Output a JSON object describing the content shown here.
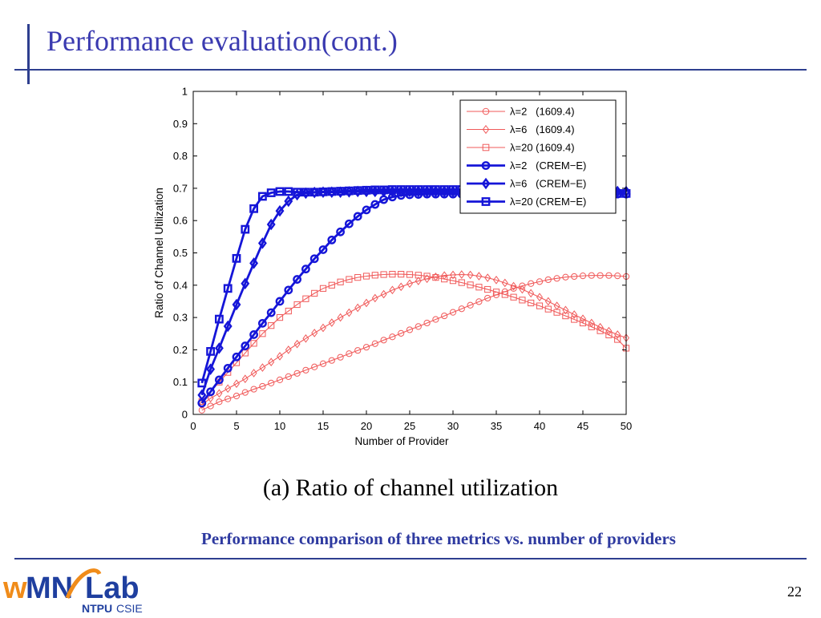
{
  "slide": {
    "title": "Performance evaluation(cont.)",
    "caption": "(a)  Ratio  of  channel  utilization",
    "subcaption": "Performance comparison of three metrics vs. number of providers",
    "page_number": "22",
    "logo": {
      "text": "wMNLab",
      "subtext_bold": "NTPU",
      "subtext": "CSIE"
    }
  },
  "colors": {
    "accent": "#2e3f8f",
    "title": "#3a3ab0",
    "caption": "#2e3aa0",
    "red": "#f05a5a",
    "blue": "#1515d8"
  },
  "chart_data": {
    "type": "line",
    "xlabel": "Number of Provider",
    "ylabel": "Ratio of Channel Utilization",
    "xlim": [
      0,
      50
    ],
    "ylim": [
      0,
      1
    ],
    "xticks": [
      0,
      5,
      10,
      15,
      20,
      25,
      30,
      35,
      40,
      45,
      50
    ],
    "yticks": [
      0,
      0.1,
      0.2,
      0.3,
      0.4,
      0.5,
      0.6,
      0.7,
      0.8,
      0.9,
      1
    ],
    "legend_position": "top-right",
    "grid": false,
    "series": [
      {
        "name": "λ=2   (1609.4)",
        "color": "#f05a5a",
        "marker": "circle",
        "bold": false,
        "x": [
          1,
          2,
          3,
          4,
          5,
          6,
          7,
          8,
          9,
          10,
          11,
          12,
          13,
          14,
          15,
          16,
          17,
          18,
          19,
          20,
          21,
          22,
          23,
          24,
          25,
          26,
          27,
          28,
          29,
          30,
          31,
          32,
          33,
          34,
          35,
          36,
          37,
          38,
          39,
          40,
          41,
          42,
          43,
          44,
          45,
          46,
          47,
          48,
          49,
          50
        ],
        "y": [
          0.013,
          0.026,
          0.039,
          0.048,
          0.057,
          0.068,
          0.078,
          0.087,
          0.097,
          0.107,
          0.117,
          0.127,
          0.137,
          0.147,
          0.157,
          0.167,
          0.177,
          0.188,
          0.198,
          0.208,
          0.219,
          0.23,
          0.24,
          0.251,
          0.262,
          0.272,
          0.283,
          0.294,
          0.305,
          0.316,
          0.327,
          0.338,
          0.349,
          0.36,
          0.37,
          0.38,
          0.39,
          0.398,
          0.405,
          0.411,
          0.417,
          0.421,
          0.425,
          0.427,
          0.429,
          0.43,
          0.43,
          0.43,
          0.429,
          0.427
        ]
      },
      {
        "name": "λ=6   (1609.4)",
        "color": "#f05a5a",
        "marker": "diamond",
        "bold": false,
        "x": [
          1,
          2,
          3,
          4,
          5,
          6,
          7,
          8,
          9,
          10,
          11,
          12,
          13,
          14,
          15,
          16,
          17,
          18,
          19,
          20,
          21,
          22,
          23,
          24,
          25,
          26,
          27,
          28,
          29,
          30,
          31,
          32,
          33,
          34,
          35,
          36,
          37,
          38,
          39,
          40,
          41,
          42,
          43,
          44,
          45,
          46,
          47,
          48,
          49,
          50
        ],
        "y": [
          0.03,
          0.05,
          0.065,
          0.08,
          0.095,
          0.11,
          0.128,
          0.145,
          0.162,
          0.18,
          0.2,
          0.218,
          0.235,
          0.252,
          0.268,
          0.284,
          0.3,
          0.315,
          0.33,
          0.345,
          0.36,
          0.372,
          0.385,
          0.395,
          0.405,
          0.413,
          0.42,
          0.426,
          0.43,
          0.432,
          0.433,
          0.432,
          0.428,
          0.423,
          0.416,
          0.407,
          0.397,
          0.387,
          0.375,
          0.363,
          0.35,
          0.336,
          0.323,
          0.309,
          0.296,
          0.283,
          0.27,
          0.258,
          0.247,
          0.237
        ]
      },
      {
        "name": "λ=20 (1609.4)",
        "color": "#f05a5a",
        "marker": "square",
        "bold": false,
        "x": [
          1,
          2,
          3,
          4,
          5,
          6,
          7,
          8,
          9,
          10,
          11,
          12,
          13,
          14,
          15,
          16,
          17,
          18,
          19,
          20,
          21,
          22,
          23,
          24,
          25,
          26,
          27,
          28,
          29,
          30,
          31,
          32,
          33,
          34,
          35,
          36,
          37,
          38,
          39,
          40,
          41,
          42,
          43,
          44,
          45,
          46,
          47,
          48,
          49,
          50
        ],
        "y": [
          0.04,
          0.07,
          0.1,
          0.13,
          0.16,
          0.19,
          0.22,
          0.25,
          0.275,
          0.3,
          0.32,
          0.34,
          0.358,
          0.375,
          0.39,
          0.4,
          0.41,
          0.418,
          0.424,
          0.428,
          0.431,
          0.433,
          0.434,
          0.434,
          0.433,
          0.431,
          0.428,
          0.424,
          0.419,
          0.414,
          0.408,
          0.401,
          0.394,
          0.387,
          0.379,
          0.371,
          0.363,
          0.354,
          0.345,
          0.336,
          0.326,
          0.316,
          0.305,
          0.294,
          0.283,
          0.271,
          0.259,
          0.246,
          0.232,
          0.205
        ]
      },
      {
        "name": "λ=2   (CREM−E)",
        "color": "#1515d8",
        "marker": "circle",
        "bold": true,
        "x": [
          1,
          2,
          3,
          4,
          5,
          6,
          7,
          8,
          9,
          10,
          11,
          12,
          13,
          14,
          15,
          16,
          17,
          18,
          19,
          20,
          21,
          22,
          23,
          24,
          25,
          26,
          27,
          28,
          29,
          30,
          31,
          32,
          33,
          34,
          35,
          36,
          37,
          38,
          39,
          40,
          41,
          42,
          43,
          44,
          45,
          46,
          47,
          48,
          49,
          50
        ],
        "y": [
          0.035,
          0.07,
          0.107,
          0.143,
          0.178,
          0.212,
          0.247,
          0.282,
          0.315,
          0.35,
          0.385,
          0.418,
          0.45,
          0.482,
          0.51,
          0.54,
          0.565,
          0.59,
          0.613,
          0.633,
          0.65,
          0.665,
          0.673,
          0.678,
          0.68,
          0.681,
          0.682,
          0.682,
          0.682,
          0.682,
          0.682,
          0.682,
          0.682,
          0.682,
          0.682,
          0.682,
          0.682,
          0.682,
          0.682,
          0.682,
          0.682,
          0.682,
          0.682,
          0.682,
          0.682,
          0.682,
          0.682,
          0.682,
          0.682,
          0.682
        ]
      },
      {
        "name": "λ=6   (CREM−E)",
        "color": "#1515d8",
        "marker": "diamond",
        "bold": true,
        "x": [
          1,
          2,
          3,
          4,
          5,
          6,
          7,
          8,
          9,
          10,
          11,
          12,
          13,
          14,
          15,
          16,
          17,
          18,
          19,
          20,
          21,
          22,
          23,
          24,
          25,
          26,
          27,
          28,
          29,
          30,
          31,
          32,
          33,
          34,
          35,
          36,
          37,
          38,
          39,
          40,
          41,
          42,
          43,
          44,
          45,
          46,
          47,
          48,
          49,
          50
        ],
        "y": [
          0.06,
          0.14,
          0.205,
          0.273,
          0.34,
          0.405,
          0.468,
          0.53,
          0.588,
          0.63,
          0.66,
          0.68,
          0.685,
          0.687,
          0.688,
          0.688,
          0.688,
          0.689,
          0.69,
          0.69,
          0.69,
          0.69,
          0.69,
          0.69,
          0.69,
          0.69,
          0.69,
          0.69,
          0.69,
          0.69,
          0.69,
          0.69,
          0.69,
          0.69,
          0.69,
          0.69,
          0.69,
          0.69,
          0.69,
          0.69,
          0.69,
          0.69,
          0.69,
          0.69,
          0.69,
          0.69,
          0.69,
          0.69,
          0.69,
          0.69
        ]
      },
      {
        "name": "λ=20 (CREM−E)",
        "color": "#1515d8",
        "marker": "square",
        "bold": true,
        "x": [
          1,
          2,
          3,
          4,
          5,
          6,
          7,
          8,
          9,
          10,
          11,
          12,
          13,
          14,
          15,
          16,
          17,
          18,
          19,
          20,
          21,
          22,
          23,
          24,
          25,
          26,
          27,
          28,
          29,
          30,
          31,
          32,
          33,
          34,
          35,
          36,
          37,
          38,
          39,
          40,
          41,
          42,
          43,
          44,
          45,
          46,
          47,
          48,
          49,
          50
        ],
        "y": [
          0.097,
          0.195,
          0.295,
          0.39,
          0.483,
          0.573,
          0.637,
          0.675,
          0.686,
          0.69,
          0.69,
          0.688,
          0.688,
          0.688,
          0.689,
          0.69,
          0.691,
          0.692,
          0.693,
          0.694,
          0.695,
          0.695,
          0.696,
          0.696,
          0.696,
          0.696,
          0.696,
          0.696,
          0.696,
          0.696,
          0.696,
          0.695,
          0.695,
          0.694,
          0.694,
          0.693,
          0.693,
          0.692,
          0.692,
          0.691,
          0.69,
          0.689,
          0.688,
          0.688,
          0.687,
          0.686,
          0.685,
          0.685,
          0.684,
          0.684
        ]
      }
    ]
  }
}
